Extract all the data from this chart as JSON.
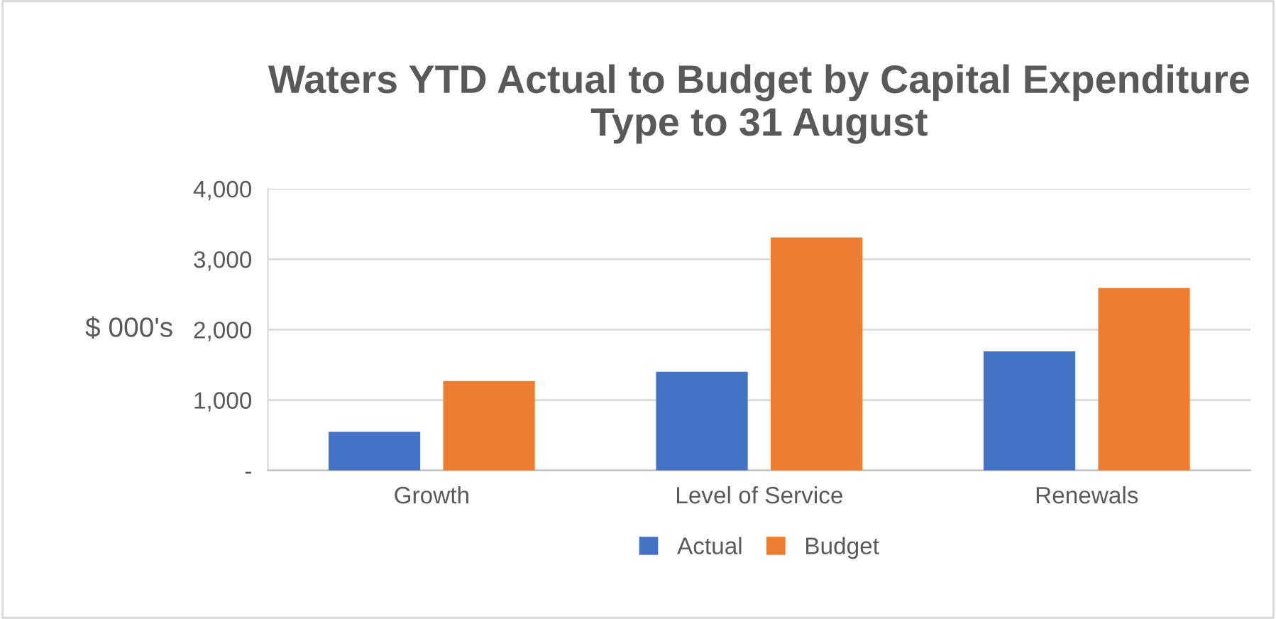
{
  "chart_data": {
    "type": "bar",
    "title": "Waters YTD Actual to Budget by Capital Expenditure Type to 31 August",
    "ylabel": "$ 000's",
    "categories": [
      "Growth",
      "Level of Service",
      "Renewals"
    ],
    "series": [
      {
        "name": "Actual",
        "color": "#4472c4",
        "values": [
          550,
          1400,
          1690
        ]
      },
      {
        "name": "Budget",
        "color": "#ed7d31",
        "values": [
          1270,
          3310,
          2590
        ]
      }
    ],
    "ylim": [
      0,
      4000
    ],
    "yticks": [
      {
        "value": 0,
        "label": "-"
      },
      {
        "value": 1000,
        "label": "1,000"
      },
      {
        "value": 2000,
        "label": "2,000"
      },
      {
        "value": 3000,
        "label": "3,000"
      },
      {
        "value": 4000,
        "label": "4,000"
      }
    ],
    "grid": "y",
    "legend": "bottom"
  }
}
